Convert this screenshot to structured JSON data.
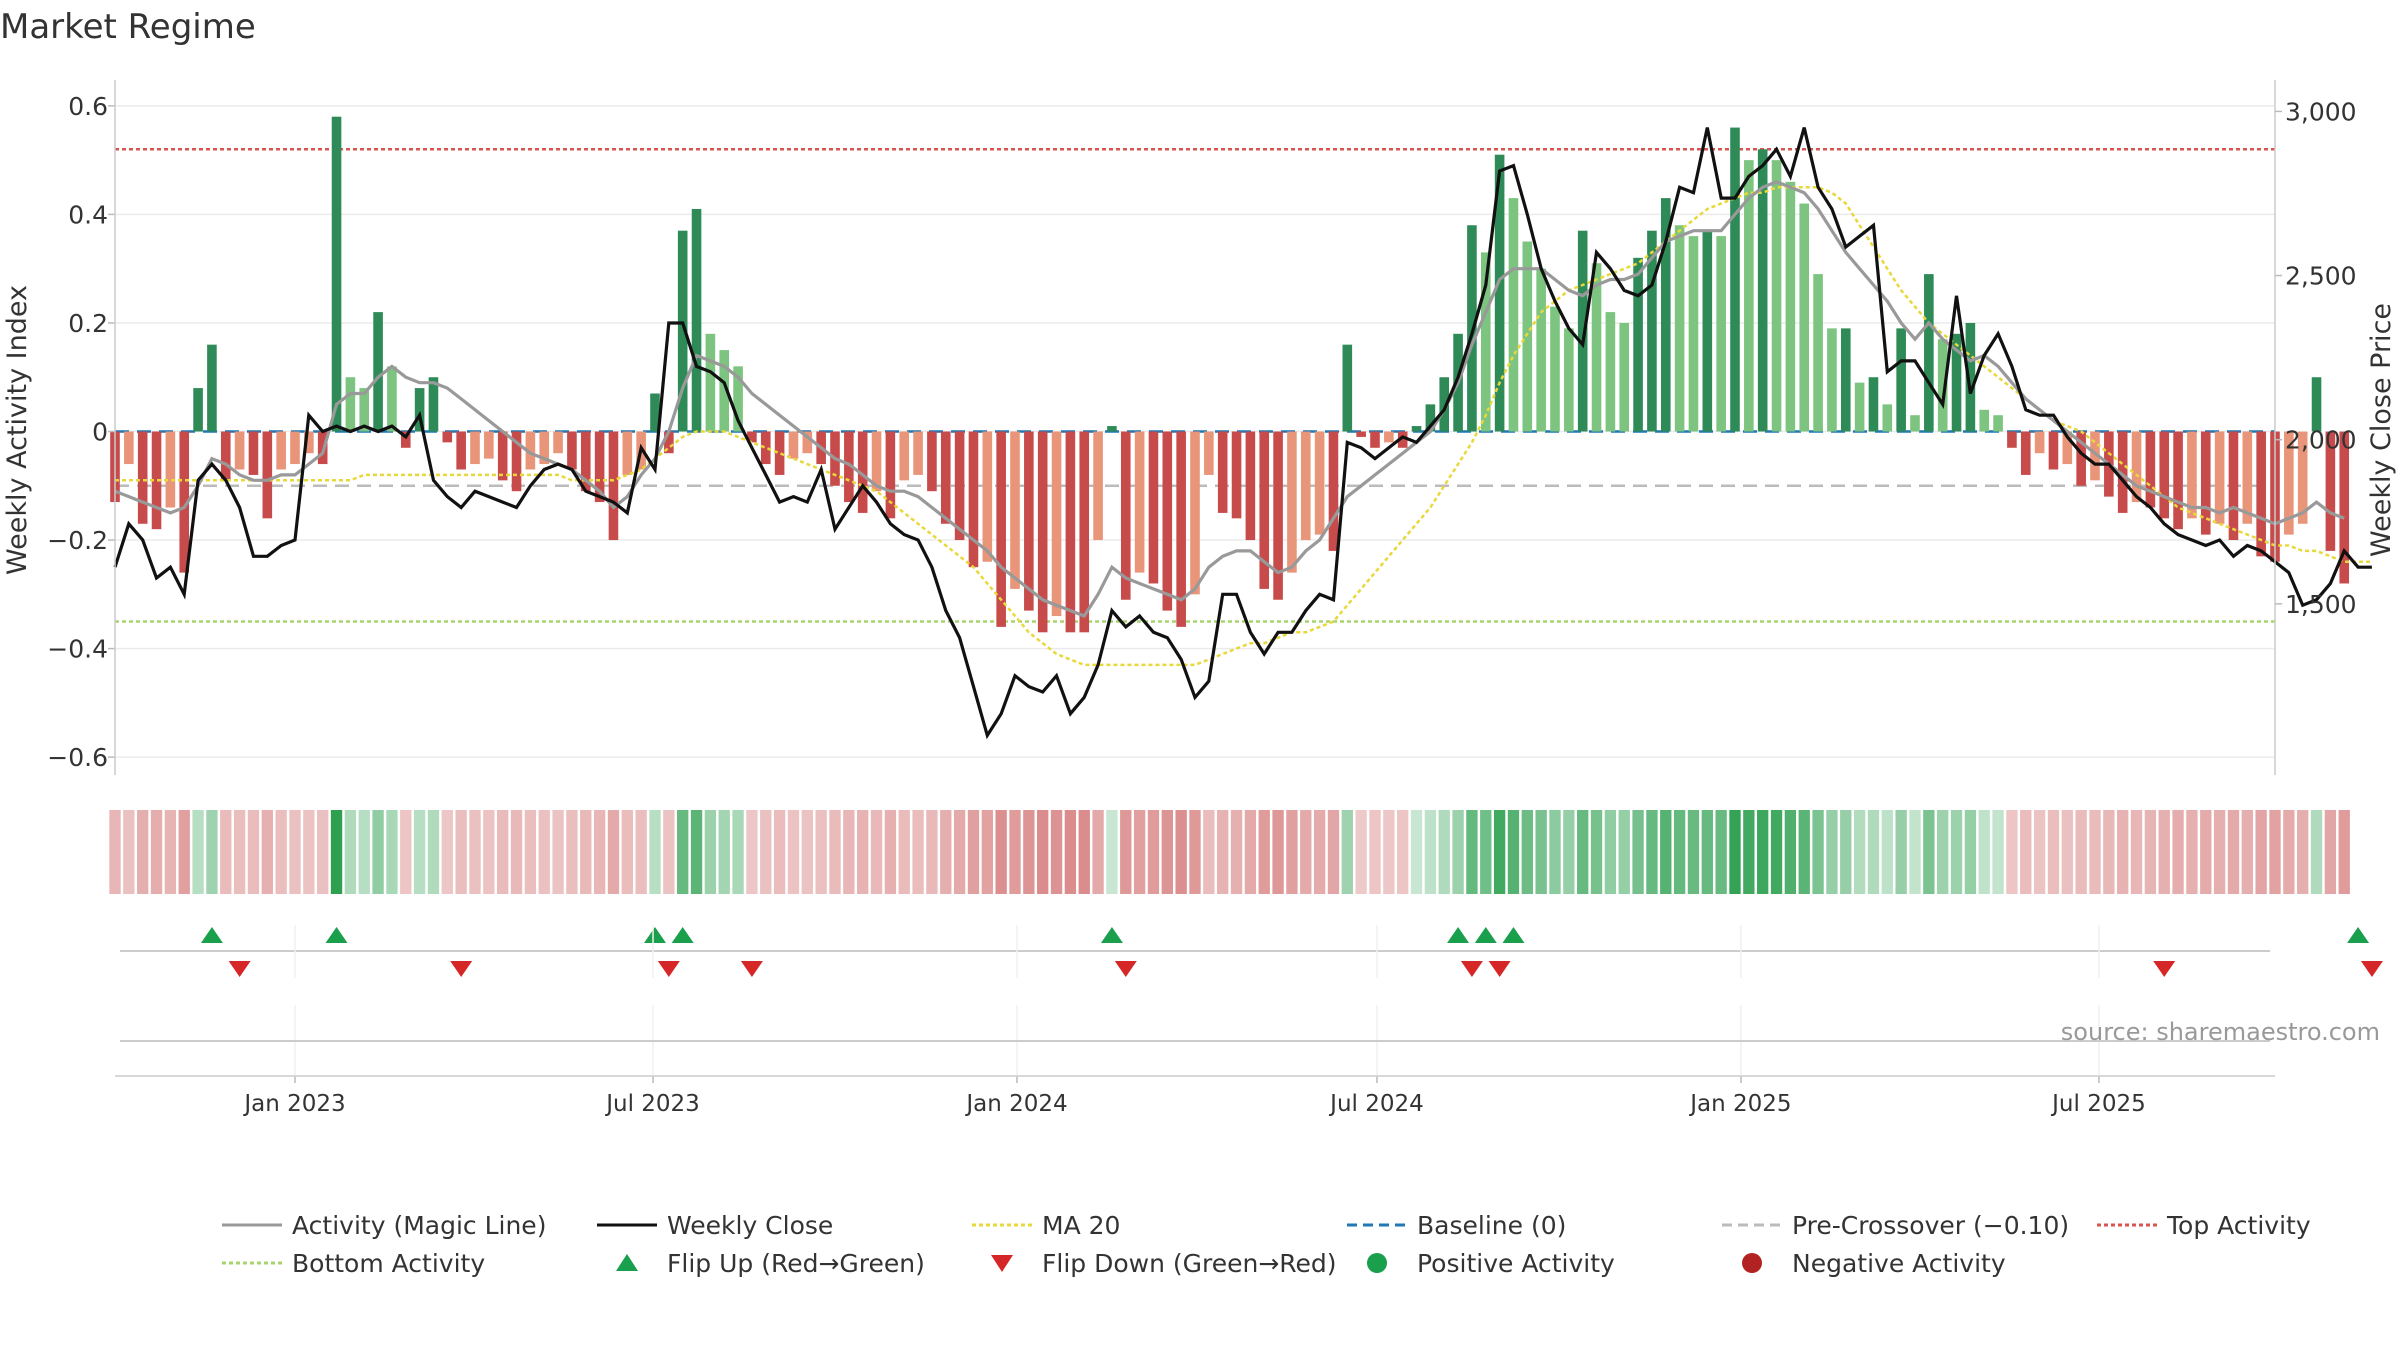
{
  "chart_data": {
    "type": "bar",
    "title": "Market Regime",
    "ylabel_left": "Weekly Activity Index",
    "ylabel_right": "Weekly Close Price",
    "source": "source: sharemaestro.com",
    "x_range": [
      "2022-10-02",
      "2025-09-28"
    ],
    "ylim_left": [
      -0.62,
      0.62
    ],
    "ylim_right": [
      1000,
      3050
    ],
    "yticks_left": [
      "0.6",
      "0.4",
      "0.2",
      "0",
      "−0.2",
      "−0.4",
      "−0.6"
    ],
    "yticks_left_values": [
      0.6,
      0.4,
      0.2,
      0,
      -0.2,
      -0.4,
      -0.6
    ],
    "yticks_right": [
      "3,000",
      "2,500",
      "2,000",
      "1,500"
    ],
    "yticks_right_values": [
      3000,
      2500,
      2000,
      1500
    ],
    "x_ticks": [
      {
        "date": "2023-01-01",
        "label": "Jan 2023"
      },
      {
        "date": "2023-07-01",
        "label": "Jul 2023"
      },
      {
        "date": "2024-01-01",
        "label": "Jan 2024"
      },
      {
        "date": "2024-07-01",
        "label": "Jul 2024"
      },
      {
        "date": "2025-01-01",
        "label": "Jan 2025"
      },
      {
        "date": "2025-07-01",
        "label": "Jul 2025"
      }
    ],
    "reference_lines": {
      "top_activity": 0.52,
      "bottom_activity": -0.35,
      "pre_crossover": -0.1,
      "baseline": 0
    },
    "start_date": "2022-10-02",
    "activity": [
      -0.13,
      -0.06,
      -0.17,
      -0.18,
      -0.14,
      -0.26,
      0.08,
      0.16,
      -0.09,
      -0.07,
      -0.08,
      -0.16,
      -0.07,
      -0.06,
      -0.04,
      -0.06,
      0.58,
      0.1,
      0.08,
      0.22,
      0.12,
      -0.03,
      0.08,
      0.1,
      -0.02,
      -0.07,
      -0.06,
      -0.05,
      -0.09,
      -0.11,
      -0.07,
      -0.06,
      -0.04,
      -0.07,
      -0.11,
      -0.13,
      -0.2,
      -0.08,
      -0.07,
      0.07,
      -0.04,
      0.37,
      0.41,
      0.18,
      0.15,
      0.12,
      -0.02,
      -0.06,
      -0.08,
      -0.05,
      -0.04,
      -0.06,
      -0.1,
      -0.13,
      -0.15,
      -0.11,
      -0.16,
      -0.09,
      -0.08,
      -0.11,
      -0.17,
      -0.2,
      -0.25,
      -0.24,
      -0.36,
      -0.29,
      -0.33,
      -0.37,
      -0.34,
      -0.37,
      -0.37,
      -0.2,
      0.01,
      -0.31,
      -0.26,
      -0.28,
      -0.33,
      -0.36,
      -0.3,
      -0.08,
      -0.15,
      -0.16,
      -0.2,
      -0.29,
      -0.31,
      -0.26,
      -0.2,
      -0.19,
      -0.22,
      0.16,
      -0.01,
      -0.03,
      -0.02,
      -0.03,
      0.01,
      0.05,
      0.1,
      0.18,
      0.38,
      0.33,
      0.51,
      0.43,
      0.35,
      0.3,
      0.23,
      0.19,
      0.37,
      0.31,
      0.22,
      0.2,
      0.32,
      0.37,
      0.43,
      0.38,
      0.36,
      0.37,
      0.36,
      0.56,
      0.5,
      0.52,
      0.5,
      0.46,
      0.42,
      0.29,
      0.19,
      0.19,
      0.09,
      0.1,
      0.05,
      0.19,
      0.03,
      0.29,
      0.17,
      0.18,
      0.2,
      0.04,
      0.03,
      -0.03,
      -0.08,
      -0.04,
      -0.07,
      -0.06,
      -0.1,
      -0.09,
      -0.12,
      -0.15,
      -0.13,
      -0.14,
      -0.16,
      -0.18,
      -0.16,
      -0.19,
      -0.17,
      -0.2,
      -0.17,
      -0.23,
      -0.24,
      -0.19,
      -0.17,
      0.1,
      -0.22,
      -0.28
    ],
    "close_scaled": [
      -0.25,
      -0.17,
      -0.2,
      -0.27,
      -0.25,
      -0.3,
      -0.09,
      -0.06,
      -0.09,
      -0.14,
      -0.23,
      -0.23,
      -0.21,
      -0.2,
      0.03,
      0.0,
      0.01,
      0.0,
      0.01,
      0.0,
      0.01,
      -0.01,
      0.03,
      -0.09,
      -0.12,
      -0.14,
      -0.11,
      -0.12,
      -0.13,
      -0.14,
      -0.1,
      -0.07,
      -0.06,
      -0.07,
      -0.11,
      -0.12,
      -0.13,
      -0.15,
      -0.03,
      -0.07,
      0.2,
      0.2,
      0.12,
      0.11,
      0.09,
      0.02,
      -0.03,
      -0.08,
      -0.13,
      -0.12,
      -0.13,
      -0.07,
      -0.18,
      -0.14,
      -0.1,
      -0.13,
      -0.17,
      -0.19,
      -0.2,
      -0.25,
      -0.33,
      -0.38,
      -0.47,
      -0.56,
      -0.52,
      -0.45,
      -0.47,
      -0.48,
      -0.45,
      -0.52,
      -0.49,
      -0.43,
      -0.33,
      -0.36,
      -0.34,
      -0.37,
      -0.38,
      -0.42,
      -0.49,
      -0.46,
      -0.3,
      -0.3,
      -0.37,
      -0.41,
      -0.37,
      -0.37,
      -0.33,
      -0.3,
      -0.31,
      -0.02,
      -0.03,
      -0.05,
      -0.03,
      -0.01,
      -0.02,
      0.01,
      0.04,
      0.1,
      0.18,
      0.27,
      0.48,
      0.49,
      0.4,
      0.3,
      0.24,
      0.19,
      0.16,
      0.33,
      0.3,
      0.26,
      0.25,
      0.27,
      0.35,
      0.45,
      0.44,
      0.56,
      0.43,
      0.43,
      0.47,
      0.49,
      0.52,
      0.47,
      0.56,
      0.45,
      0.41,
      0.34,
      0.36,
      0.38,
      0.11,
      0.13,
      0.13,
      0.09,
      0.05,
      0.25,
      0.07,
      0.14,
      0.18,
      0.12,
      0.04,
      0.03,
      0.03,
      -0.01,
      -0.04,
      -0.06,
      -0.06,
      -0.09,
      -0.12,
      -0.14,
      -0.17,
      -0.19,
      -0.2,
      -0.21,
      -0.2,
      -0.23,
      -0.21,
      -0.22,
      -0.24,
      -0.26,
      -0.32,
      -0.31,
      -0.28,
      -0.22,
      -0.25,
      -0.25
    ],
    "magic_line": [
      -0.11,
      -0.12,
      -0.13,
      -0.14,
      -0.15,
      -0.14,
      -0.1,
      -0.05,
      -0.06,
      -0.08,
      -0.09,
      -0.09,
      -0.08,
      -0.08,
      -0.06,
      -0.04,
      0.05,
      0.07,
      0.07,
      0.1,
      0.12,
      0.1,
      0.09,
      0.09,
      0.08,
      0.06,
      0.04,
      0.02,
      0.0,
      -0.02,
      -0.04,
      -0.05,
      -0.06,
      -0.07,
      -0.09,
      -0.11,
      -0.14,
      -0.12,
      -0.08,
      -0.05,
      0.0,
      0.08,
      0.14,
      0.13,
      0.12,
      0.1,
      0.07,
      0.05,
      0.03,
      0.01,
      -0.01,
      -0.03,
      -0.05,
      -0.06,
      -0.08,
      -0.1,
      -0.11,
      -0.11,
      -0.12,
      -0.14,
      -0.16,
      -0.18,
      -0.2,
      -0.22,
      -0.25,
      -0.27,
      -0.29,
      -0.31,
      -0.32,
      -0.33,
      -0.34,
      -0.3,
      -0.25,
      -0.27,
      -0.28,
      -0.29,
      -0.3,
      -0.31,
      -0.29,
      -0.25,
      -0.23,
      -0.22,
      -0.22,
      -0.24,
      -0.26,
      -0.25,
      -0.22,
      -0.2,
      -0.16,
      -0.12,
      -0.1,
      -0.08,
      -0.06,
      -0.04,
      -0.02,
      0.0,
      0.04,
      0.09,
      0.16,
      0.22,
      0.28,
      0.3,
      0.3,
      0.3,
      0.28,
      0.26,
      0.25,
      0.27,
      0.28,
      0.28,
      0.29,
      0.32,
      0.35,
      0.36,
      0.37,
      0.37,
      0.37,
      0.4,
      0.43,
      0.45,
      0.46,
      0.45,
      0.44,
      0.41,
      0.37,
      0.33,
      0.3,
      0.27,
      0.24,
      0.2,
      0.17,
      0.2,
      0.17,
      0.15,
      0.13,
      0.14,
      0.12,
      0.09,
      0.06,
      0.04,
      0.02,
      0.0,
      -0.02,
      -0.04,
      -0.06,
      -0.08,
      -0.1,
      -0.11,
      -0.12,
      -0.13,
      -0.14,
      -0.14,
      -0.15,
      -0.14,
      -0.15,
      -0.16,
      -0.17,
      -0.16,
      -0.15,
      -0.13,
      -0.15,
      -0.16
    ],
    "ma20": [
      -0.09,
      -0.09,
      -0.09,
      -0.09,
      -0.09,
      -0.09,
      -0.09,
      -0.09,
      -0.09,
      -0.09,
      -0.09,
      -0.09,
      -0.09,
      -0.09,
      -0.09,
      -0.09,
      -0.09,
      -0.09,
      -0.08,
      -0.08,
      -0.08,
      -0.08,
      -0.08,
      -0.08,
      -0.08,
      -0.08,
      -0.08,
      -0.08,
      -0.08,
      -0.08,
      -0.08,
      -0.08,
      -0.08,
      -0.09,
      -0.09,
      -0.09,
      -0.09,
      -0.08,
      -0.07,
      -0.05,
      -0.03,
      -0.01,
      0.0,
      0.0,
      0.0,
      -0.01,
      -0.02,
      -0.03,
      -0.04,
      -0.05,
      -0.06,
      -0.07,
      -0.08,
      -0.09,
      -0.1,
      -0.11,
      -0.13,
      -0.15,
      -0.17,
      -0.19,
      -0.21,
      -0.23,
      -0.25,
      -0.28,
      -0.31,
      -0.34,
      -0.37,
      -0.39,
      -0.41,
      -0.42,
      -0.43,
      -0.43,
      -0.43,
      -0.43,
      -0.43,
      -0.43,
      -0.43,
      -0.43,
      -0.43,
      -0.42,
      -0.41,
      -0.4,
      -0.39,
      -0.39,
      -0.38,
      -0.37,
      -0.37,
      -0.36,
      -0.35,
      -0.32,
      -0.29,
      -0.26,
      -0.23,
      -0.2,
      -0.17,
      -0.14,
      -0.1,
      -0.06,
      -0.02,
      0.03,
      0.09,
      0.14,
      0.18,
      0.22,
      0.24,
      0.26,
      0.27,
      0.28,
      0.29,
      0.3,
      0.31,
      0.33,
      0.35,
      0.37,
      0.39,
      0.41,
      0.42,
      0.43,
      0.44,
      0.44,
      0.45,
      0.45,
      0.45,
      0.45,
      0.44,
      0.42,
      0.38,
      0.34,
      0.3,
      0.26,
      0.23,
      0.2,
      0.18,
      0.16,
      0.14,
      0.12,
      0.1,
      0.08,
      0.06,
      0.04,
      0.02,
      0.01,
      0.0,
      -0.02,
      -0.04,
      -0.06,
      -0.08,
      -0.1,
      -0.12,
      -0.14,
      -0.15,
      -0.16,
      -0.17,
      -0.18,
      -0.19,
      -0.2,
      -0.21,
      -0.21,
      -0.22,
      -0.22,
      -0.23,
      -0.24,
      -0.24,
      -0.24
    ],
    "flip_up_weeks": [
      7,
      16,
      39,
      41,
      72,
      97,
      99,
      101,
      162
    ],
    "flip_down_weeks": [
      9,
      25,
      40,
      46,
      73,
      98,
      100,
      148,
      163
    ],
    "colors": {
      "dark_green": "#2e8b57",
      "light_green": "#7cc47f",
      "dark_red": "#c84b4b",
      "light_red": "#e8957a",
      "magic_line": "#999999",
      "close": "#111111",
      "ma20": "#e8d83a",
      "baseline": "#1f77b4",
      "pre_crossover": "#bbbbbb",
      "top_activity": "#d9534f",
      "bottom_activity": "#a8d46f",
      "flip_up": "#1a9f4c",
      "flip_down": "#d62728",
      "positive": "#1a9f4c",
      "negative": "#b22222"
    },
    "legend": [
      {
        "label": "Activity (Magic Line)",
        "marker": "line",
        "color": "#999999",
        "dash": ""
      },
      {
        "label": "Weekly Close",
        "marker": "line",
        "color": "#111111",
        "dash": ""
      },
      {
        "label": "MA 20",
        "marker": "line",
        "color": "#e8d83a",
        "dash": "4 3"
      },
      {
        "label": "Baseline (0)",
        "marker": "line",
        "color": "#1f77b4",
        "dash": "10 6"
      },
      {
        "label": "Pre-Crossover (−0.10)",
        "marker": "line",
        "color": "#bbbbbb",
        "dash": "10 6"
      },
      {
        "label": "Top Activity",
        "marker": "line",
        "color": "#d9534f",
        "dash": "4 3"
      },
      {
        "label": "Bottom Activity",
        "marker": "line",
        "color": "#a8d46f",
        "dash": "4 3"
      },
      {
        "label": "Flip Up (Red→Green)",
        "marker": "triangle-up",
        "color": "#1a9f4c",
        "dash": ""
      },
      {
        "label": "Flip Down (Green→Red)",
        "marker": "triangle-down",
        "color": "#d62728",
        "dash": ""
      },
      {
        "label": "Positive Activity",
        "marker": "circle",
        "color": "#1a9f4c",
        "dash": ""
      },
      {
        "label": "Negative Activity",
        "marker": "circle",
        "color": "#b22222",
        "dash": ""
      }
    ]
  }
}
